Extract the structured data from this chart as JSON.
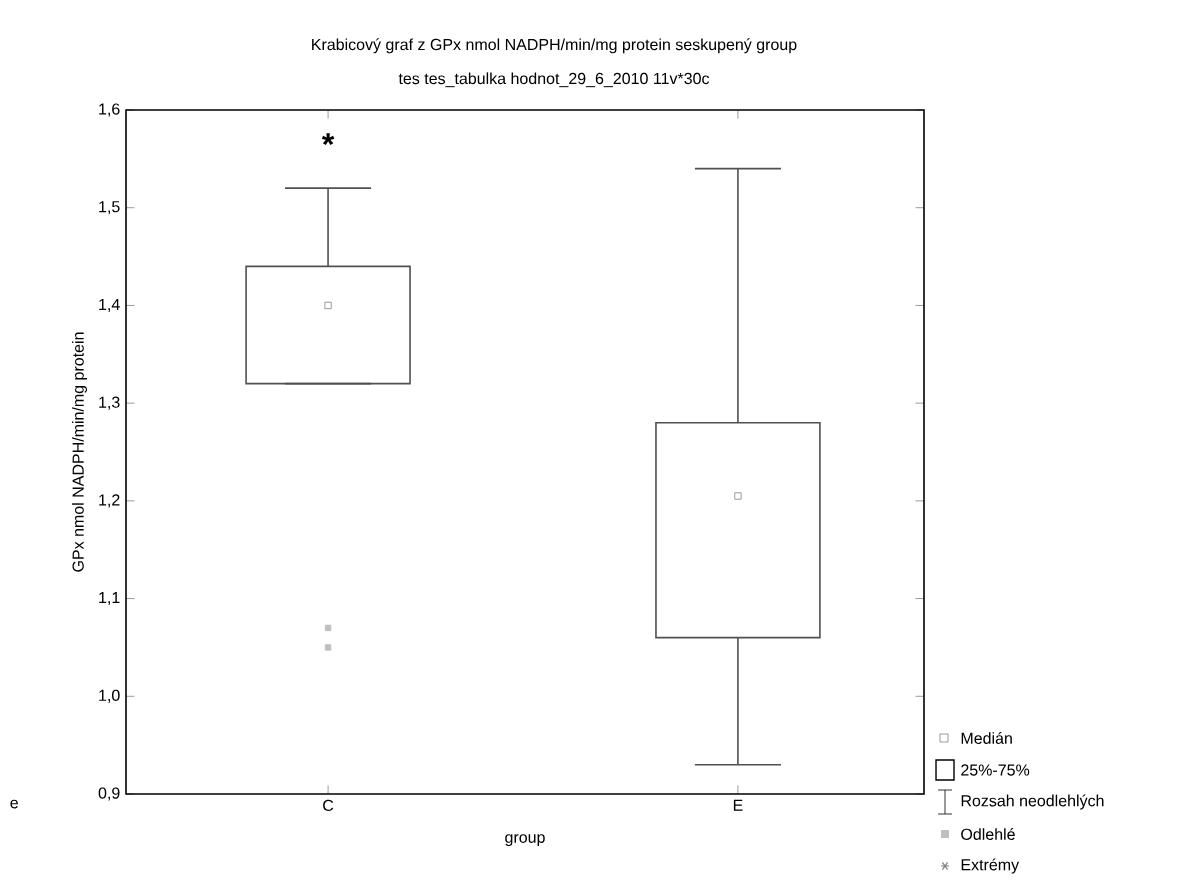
{
  "chart_data": {
    "type": "box",
    "title": "Krabicový graf z GPx nmol NADPH/min/mg protein seskupený group",
    "subtitle": "tes tes_tabulka hodnot_29_6_2010 11v*30c",
    "xlabel": "group",
    "ylabel": "GPx nmol NADPH/min/mg protein",
    "categories": [
      "C",
      "E"
    ],
    "series": [
      {
        "color": "#505050",
        "boxes": [
          {
            "low": 1.32,
            "q1": 1.32,
            "median": 1.4,
            "q3": 1.44,
            "high": 1.52,
            "outliers": [
              1.07,
              1.05
            ]
          },
          {
            "low": 0.93,
            "q1": 1.06,
            "median": 1.205,
            "q3": 1.28,
            "high": 1.54
          }
        ]
      }
    ],
    "ylim": [
      0.9,
      1.6
    ],
    "yticks": [
      {
        "value": 0.9,
        "label": "0,9"
      },
      {
        "value": 1.0,
        "label": "1,0"
      },
      {
        "value": 1.1,
        "label": "1,1"
      },
      {
        "value": 1.2,
        "label": "1,2"
      },
      {
        "value": 1.3,
        "label": "1,3"
      },
      {
        "value": 1.4,
        "label": "1,4"
      },
      {
        "value": 1.5,
        "label": "1,5"
      },
      {
        "value": 1.6,
        "label": "1,6"
      }
    ],
    "annotations": [
      "*",
      "e",
      "Medián",
      "25%-75%",
      "Rozsah neodlehlých",
      "Odlehlé",
      "Extrémy"
    ]
  }
}
